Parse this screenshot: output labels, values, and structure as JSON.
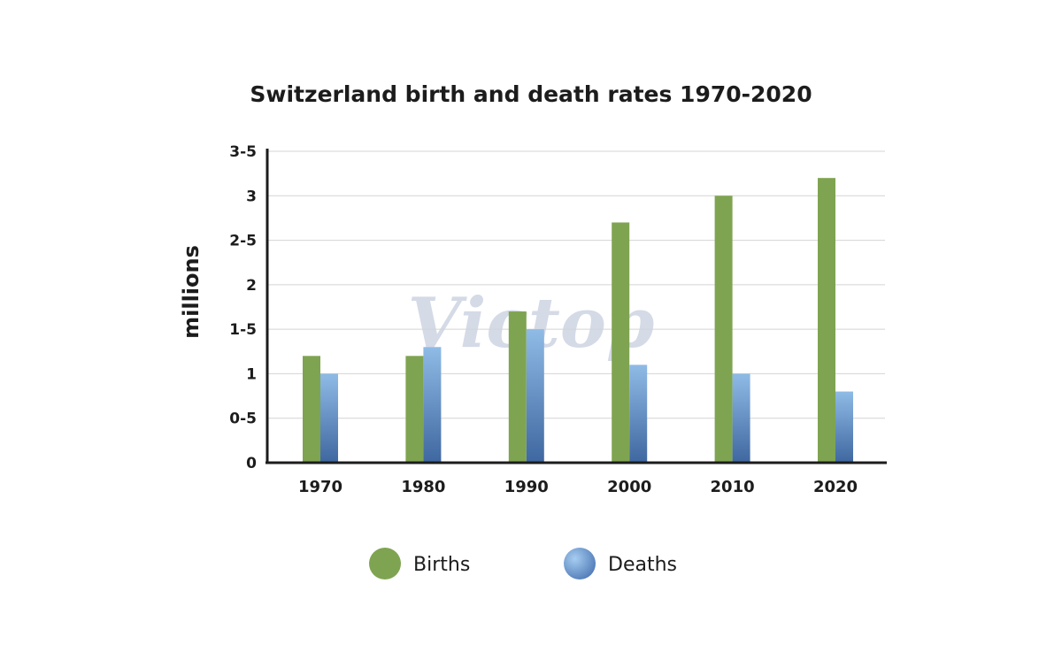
{
  "watermark": "Victop",
  "chart_data": {
    "type": "bar",
    "title": "Switzerland birth and death rates 1970-2020",
    "xlabel": "",
    "ylabel": "millions",
    "categories": [
      "1970",
      "1980",
      "1990",
      "2000",
      "2010",
      "2020"
    ],
    "ytick_labels": [
      "0",
      "0-5",
      "1",
      "1-5",
      "2",
      "2-5",
      "3",
      "3-5"
    ],
    "ylim": [
      0,
      3.5
    ],
    "grid": true,
    "legend_position": "bottom-center",
    "series": [
      {
        "name": "Births",
        "color": "#7fa451",
        "values": [
          1.2,
          1.2,
          1.7,
          2.7,
          3.0,
          3.2
        ]
      },
      {
        "name": "Deaths",
        "color": "#6a96cc",
        "values": [
          1.0,
          1.3,
          1.5,
          1.1,
          1.0,
          0.8
        ]
      }
    ]
  }
}
